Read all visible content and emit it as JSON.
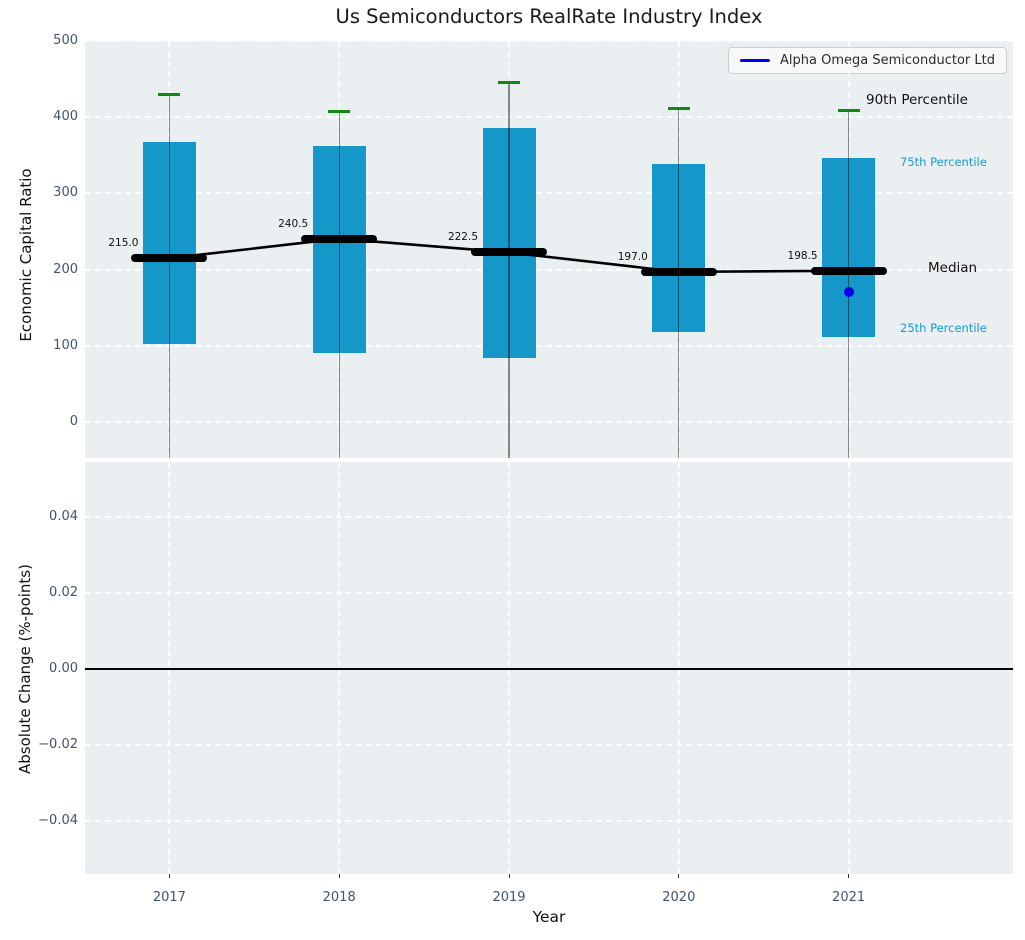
{
  "title": "Us Semiconductors RealRate Industry Index",
  "legend": {
    "label": "Alpha Omega Semiconductor Ltd"
  },
  "top_panel": {
    "ylabel": "Economic Capital Ratio",
    "ytick_labels": [
      "500",
      "400",
      "300",
      "200",
      "100",
      "0"
    ],
    "annotations": {
      "p90": "90th Percentile",
      "p75": "75th Percentile",
      "median": "Median",
      "p25": "25th Percentile"
    }
  },
  "bottom_panel": {
    "ylabel": "Absolute Change (%-points)",
    "ytick_labels": [
      "0.04",
      "0.02",
      "0.00",
      "−0.02",
      "−0.04"
    ]
  },
  "x_axis": {
    "label": "Year",
    "tick_labels": [
      "2017",
      "2018",
      "2019",
      "2020",
      "2021"
    ]
  },
  "colors": {
    "bar": "#1697c9",
    "percentile_cap": "#0e8b10",
    "median": "#000000",
    "company": "#0000ee",
    "panel_bg": "#eaeff1",
    "tick_text": "#44546a",
    "percentile_label_text": "#1899ce"
  },
  "chart_data": {
    "type": "boxplot-with-median-line",
    "title": "Us Semiconductors RealRate Industry Index",
    "xlabel": "Year",
    "ylabel_top": "Economic Capital Ratio",
    "ylabel_bottom": "Absolute Change (%-points)",
    "categories": [
      "2017",
      "2018",
      "2019",
      "2020",
      "2021"
    ],
    "series": [
      {
        "name": "Median",
        "values": [
          215.0,
          240.5,
          222.5,
          197.0,
          198.5
        ],
        "point_labels": [
          "215.0",
          "240.5",
          "222.5",
          "197.0",
          "198.5"
        ]
      },
      {
        "name": "75th Percentile",
        "values": [
          367,
          362,
          386,
          339,
          347
        ]
      },
      {
        "name": "25th Percentile",
        "values": [
          103,
          91,
          84,
          118,
          112
        ]
      },
      {
        "name": "90th Percentile",
        "values": [
          430,
          407,
          446,
          411,
          409
        ]
      },
      {
        "name": "Alpha Omega Semiconductor Ltd",
        "type": "scatter",
        "points": [
          {
            "x": "2021",
            "y": 170
          }
        ]
      }
    ],
    "top_ylim": [
      -47,
      501
    ],
    "top_yticks": [
      500,
      400,
      300,
      200,
      100,
      0
    ],
    "bottom_ylim": [
      -0.055,
      0.055
    ],
    "bottom_yticks": [
      0.04,
      0.02,
      0.0,
      -0.02,
      -0.04
    ],
    "bottom_zero_line": 0.0,
    "grid": "white-dashed",
    "legend_position": "upper right"
  }
}
